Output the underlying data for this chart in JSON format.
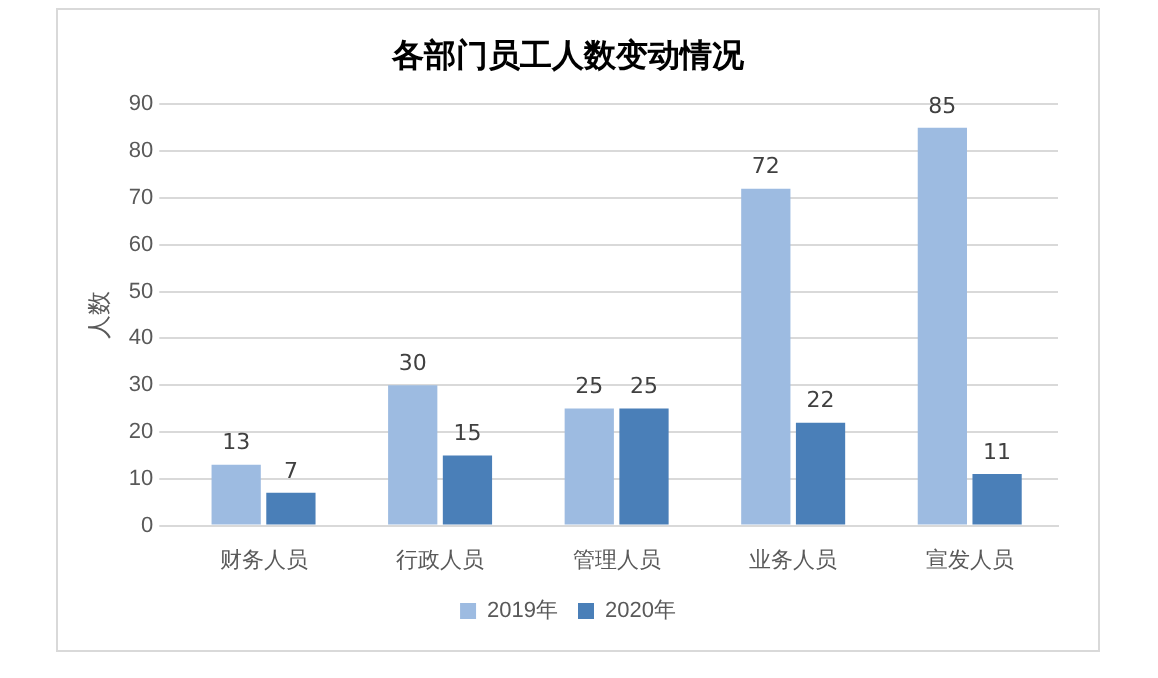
{
  "chart_data": {
    "type": "bar",
    "title": "各部门员工人数变动情况",
    "ylabel": "人数",
    "categories": [
      "财务人员",
      "行政人员",
      "管理人员",
      "业务人员",
      "宣发人员"
    ],
    "series": [
      {
        "name": "2019年",
        "color": "#9dbbe1",
        "values": [
          13,
          30,
          25,
          72,
          85
        ]
      },
      {
        "name": "2020年",
        "color": "#4a7fb8",
        "values": [
          7,
          15,
          25,
          22,
          11
        ]
      }
    ],
    "ylim": [
      0,
      90
    ],
    "yticks": [
      0,
      10,
      20,
      30,
      40,
      50,
      60,
      70,
      80,
      90
    ],
    "grid": "y",
    "legend": "bottom",
    "data_labels": true
  }
}
